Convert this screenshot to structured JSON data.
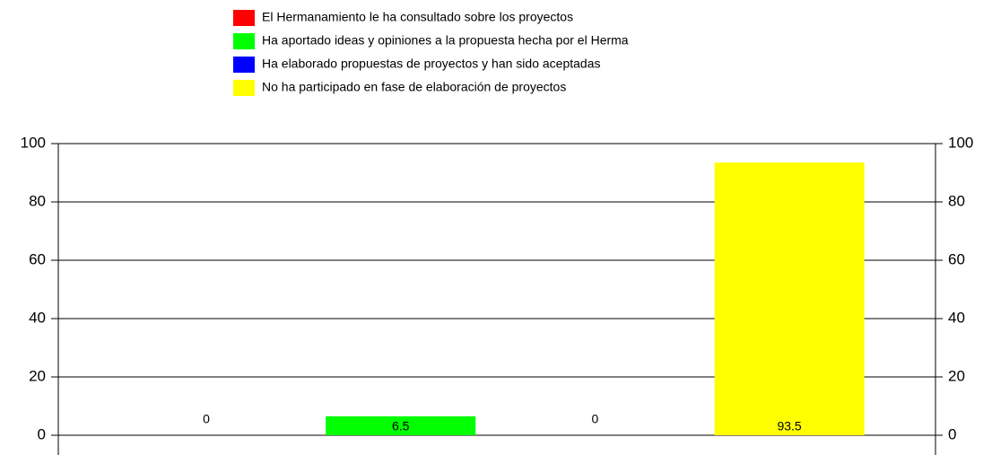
{
  "chart_data": {
    "type": "bar",
    "categories": [
      null
    ],
    "series": [
      {
        "name": "El Hermanamiento le ha consultado sobre los proyectos",
        "color": "#ff0000",
        "values": [
          0
        ]
      },
      {
        "name": "Ha aportado ideas y opiniones a la propuesta hecha por el Herma",
        "color": "#00ff00",
        "values": [
          6.5
        ]
      },
      {
        "name": "Ha elaborado propuestas de proyectos y han sido aceptadas",
        "color": "#0000ff",
        "values": [
          0
        ]
      },
      {
        "name": "No ha participado en fase de elaboración de proyectos",
        "color": "#ffff00",
        "values": [
          93.5
        ]
      }
    ],
    "ylim": [
      0,
      100
    ],
    "yticks": [
      0,
      20,
      40,
      60,
      80,
      100
    ],
    "y2lim": [
      0,
      100
    ],
    "y2ticks": [
      0,
      20,
      40,
      60,
      80,
      100
    ],
    "grid": true,
    "legend": "top"
  }
}
